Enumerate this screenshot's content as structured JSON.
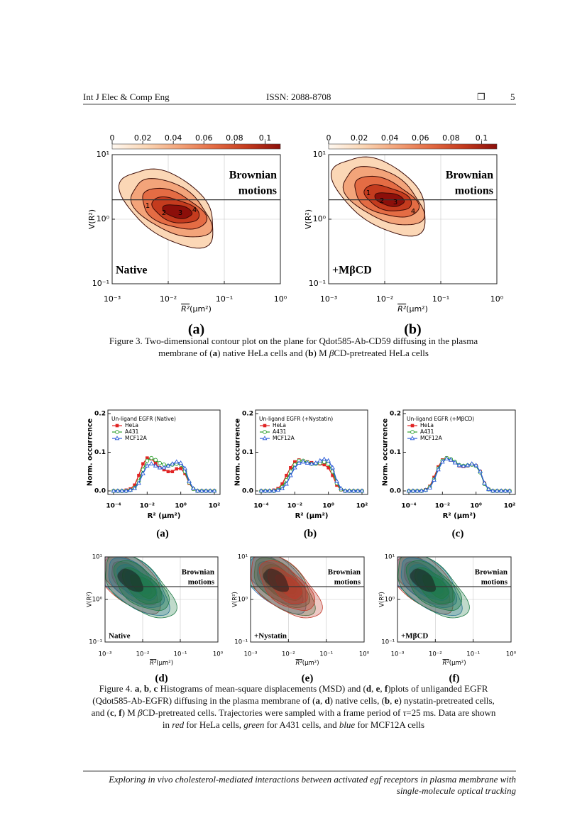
{
  "header": {
    "journal": "Int J Elec & Comp Eng",
    "issn": "ISSN: 2088-8708",
    "symbol": "❐",
    "page": "5"
  },
  "figure3": {
    "panels": [
      {
        "type": "contour",
        "label": "(a)",
        "condition": "Native",
        "annotation": [
          "Brownian",
          "motions"
        ],
        "xscale": "log",
        "yscale": "log",
        "xlim": [
          0.001,
          1
        ],
        "ylim": [
          0.1,
          10
        ],
        "xticks": [
          {
            "value": 0.001,
            "label": "10⁻³"
          },
          {
            "value": 0.01,
            "label": "10⁻²"
          },
          {
            "value": 0.1,
            "label": "10⁻¹"
          },
          {
            "value": 1,
            "label": "10⁰"
          }
        ],
        "yticks": [
          {
            "value": 0.1,
            "label": "10⁻¹"
          },
          {
            "value": 1,
            "label": "10⁰"
          },
          {
            "value": 10,
            "label": "10¹"
          }
        ],
        "xlabel": {
          "symbol": "R²",
          "unit": "(μm²)"
        },
        "ylabel": "V(R²)",
        "threshold": 2,
        "grid": true,
        "level_labels": [
          "1",
          "2",
          "3",
          "4"
        ],
        "colorbar": {
          "lim": [
            0,
            0.11
          ],
          "ticks": [
            0,
            0.02,
            0.04,
            0.06,
            0.08,
            0.1
          ],
          "colors": [
            "#fff8f0",
            "#fbd7b6",
            "#f3a47a",
            "#e46c44",
            "#c43b1e",
            "#8c0f0a"
          ]
        }
      },
      {
        "type": "contour",
        "label": "(b)",
        "condition": "+MβCD",
        "annotation": [
          "Brownian",
          "motions"
        ],
        "xscale": "log",
        "yscale": "log",
        "xlim": [
          0.001,
          1
        ],
        "ylim": [
          0.1,
          10
        ],
        "xticks": [
          {
            "value": 0.001,
            "label": "10⁻³"
          },
          {
            "value": 0.01,
            "label": "10⁻²"
          },
          {
            "value": 0.1,
            "label": "10⁻¹"
          },
          {
            "value": 1,
            "label": "10⁰"
          }
        ],
        "yticks": [
          {
            "value": 0.1,
            "label": "10⁻¹"
          },
          {
            "value": 1,
            "label": "10⁰"
          },
          {
            "value": 10,
            "label": "10¹"
          }
        ],
        "xlabel": {
          "symbol": "R²",
          "unit": "(μm²)"
        },
        "ylabel": "V(R²)",
        "threshold": 2,
        "grid": true,
        "level_labels": [
          "1",
          "2",
          "3",
          "4"
        ],
        "colorbar": {
          "lim": [
            0,
            0.11
          ],
          "ticks": [
            0,
            0.02,
            0.04,
            0.06,
            0.08,
            0.1
          ],
          "colors": [
            "#fff8f0",
            "#fbd7b6",
            "#f3a47a",
            "#e46c44",
            "#c43b1e",
            "#8c0f0a"
          ]
        }
      }
    ],
    "caption": [
      [
        {
          "t": "Figure 3. Two-dimensional contour plot on the plane for Qdot585-Ab-CD59 diffusing in the plasma"
        }
      ],
      [
        {
          "t": "membrane of ("
        },
        {
          "t": "a",
          "f": "b"
        },
        {
          "t": ") native HeLa cells and ("
        },
        {
          "t": "b",
          "f": "b"
        },
        {
          "t": ") M "
        },
        {
          "t": "β",
          "f": "i"
        },
        {
          "t": "CD-pretreated HeLa cells"
        }
      ]
    ]
  },
  "figure4": {
    "histograms": [
      {
        "type": "line",
        "label": "(a)",
        "legend_title": "Un-ligand EGFR (Native)",
        "xscale": "log",
        "x": [
          0.0001,
          0.000178,
          0.000316,
          0.000562,
          0.001,
          0.00178,
          0.00316,
          0.00562,
          0.01,
          0.0178,
          0.0316,
          0.0562,
          0.1,
          0.178,
          0.316,
          0.562,
          1,
          1.78,
          3.16,
          5.62,
          10,
          17.8,
          31.6,
          56.2,
          100
        ],
        "xlim": [
          0.0001,
          100
        ],
        "ylim": [
          0,
          0.2
        ],
        "xticks": [
          {
            "value": 0.0001,
            "label": "10⁻⁴"
          },
          {
            "value": 0.01,
            "label": "10⁻²"
          },
          {
            "value": 1,
            "label": "10⁰"
          },
          {
            "value": 100,
            "label": "10²"
          }
        ],
        "yticks": [
          {
            "value": 0,
            "label": "0.0"
          },
          0.1,
          0.2
        ],
        "xlabel": "R² (μm²)",
        "ylabel": "Norm. occurrence",
        "series": [
          {
            "name": "HeLa",
            "color": "#e02424",
            "marker": "square",
            "values": [
              0,
              0,
              0,
              0.002,
              0.005,
              0.015,
              0.04,
              0.07,
              0.085,
              0.083,
              0.072,
              0.06,
              0.055,
              0.05,
              0.05,
              0.057,
              0.058,
              0.045,
              0.02,
              0.005,
              0,
              0,
              0,
              0,
              0
            ]
          },
          {
            "name": "A431",
            "color": "#2fa02f",
            "marker": "circle",
            "values": [
              0,
              0,
              0,
              0,
              0.002,
              0.008,
              0.025,
              0.055,
              0.078,
              0.085,
              0.08,
              0.072,
              0.068,
              0.065,
              0.068,
              0.07,
              0.068,
              0.05,
              0.022,
              0.005,
              0,
              0,
              0,
              0,
              0
            ]
          },
          {
            "name": "MCF12A",
            "color": "#2a5bd7",
            "marker": "triangle",
            "values": [
              0,
              0,
              0,
              0,
              0.002,
              0.006,
              0.02,
              0.045,
              0.065,
              0.07,
              0.065,
              0.06,
              0.06,
              0.065,
              0.07,
              0.075,
              0.072,
              0.058,
              0.025,
              0.006,
              0,
              0,
              0,
              0,
              0
            ]
          }
        ]
      },
      {
        "type": "line",
        "label": "(b)",
        "legend_title": "Un-ligand EGFR (+Nystatin)",
        "xscale": "log",
        "x": [
          0.0001,
          0.000178,
          0.000316,
          0.000562,
          0.001,
          0.00178,
          0.00316,
          0.00562,
          0.01,
          0.0178,
          0.0316,
          0.0562,
          0.1,
          0.178,
          0.316,
          0.562,
          1,
          1.78,
          3.16,
          5.62,
          10,
          17.8,
          31.6,
          56.2,
          100
        ],
        "xlim": [
          0.0001,
          100
        ],
        "ylim": [
          0,
          0.2
        ],
        "xticks": [
          {
            "value": 0.0001,
            "label": "10⁻⁴"
          },
          {
            "value": 0.01,
            "label": "10⁻²"
          },
          {
            "value": 1,
            "label": "10⁰"
          },
          {
            "value": 100,
            "label": "10²"
          }
        ],
        "yticks": [
          {
            "value": 0,
            "label": "0.0"
          },
          0.1,
          0.2
        ],
        "xlabel": "R² (μm²)",
        "ylabel": "Norm. occurrence",
        "series": [
          {
            "name": "HeLa",
            "color": "#e02424",
            "marker": "square",
            "values": [
              0,
              0,
              0,
              0.002,
              0.006,
              0.018,
              0.04,
              0.06,
              0.075,
              0.08,
              0.078,
              0.075,
              0.073,
              0.07,
              0.07,
              0.068,
              0.06,
              0.04,
              0.015,
              0.003,
              0,
              0,
              0,
              0,
              0
            ]
          },
          {
            "name": "A431",
            "color": "#2fa02f",
            "marker": "circle",
            "values": [
              0,
              0,
              0,
              0,
              0.003,
              0.01,
              0.028,
              0.05,
              0.068,
              0.078,
              0.078,
              0.074,
              0.07,
              0.07,
              0.072,
              0.075,
              0.07,
              0.05,
              0.02,
              0.004,
              0,
              0,
              0,
              0,
              0
            ]
          },
          {
            "name": "MCF12A",
            "color": "#2a5bd7",
            "marker": "triangle",
            "values": [
              0,
              0,
              0,
              0,
              0.002,
              0.006,
              0.018,
              0.04,
              0.06,
              0.072,
              0.075,
              0.072,
              0.07,
              0.072,
              0.078,
              0.082,
              0.078,
              0.06,
              0.025,
              0.006,
              0,
              0,
              0,
              0,
              0
            ]
          }
        ]
      },
      {
        "type": "line",
        "label": "(c)",
        "legend_title": "Un-ligand EGFR (+MβCD)",
        "xscale": "log",
        "x": [
          0.0001,
          0.000178,
          0.000316,
          0.000562,
          0.001,
          0.00178,
          0.00316,
          0.00562,
          0.01,
          0.0178,
          0.0316,
          0.0562,
          0.1,
          0.178,
          0.316,
          0.562,
          1,
          1.78,
          3.16,
          5.62,
          10,
          17.8,
          31.6,
          56.2,
          100
        ],
        "xlim": [
          0.0001,
          100
        ],
        "ylim": [
          0,
          0.2
        ],
        "xticks": [
          {
            "value": 0.0001,
            "label": "10⁻⁴"
          },
          {
            "value": 0.01,
            "label": "10⁻²"
          },
          {
            "value": 1,
            "label": "10⁰"
          },
          {
            "value": 100,
            "label": "10²"
          }
        ],
        "yticks": [
          {
            "value": 0,
            "label": "0.0"
          },
          0.1,
          0.2
        ],
        "xlabel": "R² (μm²)",
        "ylabel": "Norm. occurrence",
        "series": [
          {
            "name": "HeLa",
            "color": "#e02424",
            "marker": "square",
            "values": [
              0,
              0,
              0,
              0,
              0.003,
              0.012,
              0.035,
              0.062,
              0.08,
              0.085,
              0.08,
              0.073,
              0.065,
              0.063,
              0.065,
              0.068,
              0.065,
              0.05,
              0.02,
              0.004,
              0,
              0,
              0,
              0,
              0
            ]
          },
          {
            "name": "A431",
            "color": "#2fa02f",
            "marker": "circle",
            "values": [
              0,
              0,
              0,
              0,
              0.002,
              0.01,
              0.03,
              0.058,
              0.078,
              0.085,
              0.082,
              0.075,
              0.067,
              0.065,
              0.066,
              0.068,
              0.064,
              0.048,
              0.018,
              0.004,
              0,
              0,
              0,
              0,
              0
            ]
          },
          {
            "name": "MCF12A",
            "color": "#2a5bd7",
            "marker": "triangle",
            "values": [
              0,
              0,
              0,
              0,
              0.002,
              0.008,
              0.028,
              0.055,
              0.075,
              0.083,
              0.08,
              0.073,
              0.066,
              0.064,
              0.066,
              0.07,
              0.066,
              0.05,
              0.02,
              0.004,
              0,
              0,
              0,
              0,
              0
            ]
          }
        ]
      }
    ],
    "contours": [
      {
        "type": "contour",
        "label": "(d)",
        "condition": "Native",
        "annotation": [
          "Brownian",
          "motions"
        ],
        "xscale": "log",
        "yscale": "log",
        "xlim": [
          0.001,
          1
        ],
        "ylim": [
          0.1,
          10
        ],
        "xticks": [
          {
            "value": 0.001,
            "label": "10⁻³"
          },
          {
            "value": 0.01,
            "label": "10⁻²"
          },
          {
            "value": 0.1,
            "label": "10⁻¹"
          },
          {
            "value": 1,
            "label": "10⁰"
          }
        ],
        "yticks": [
          {
            "value": 0.1,
            "label": "10⁻¹"
          },
          {
            "value": 1,
            "label": "10⁰"
          },
          {
            "value": 10,
            "label": "10¹"
          }
        ],
        "xlabel": {
          "symbol": "R²",
          "unit": "(μm²)"
        },
        "ylabel": "V(R²)",
        "threshold": 2,
        "grid": true,
        "fills": [
          "#c0392b",
          "#2c6fb0",
          "#1e7a45"
        ]
      },
      {
        "type": "contour",
        "label": "(e)",
        "condition": "+Nystatin",
        "annotation": [
          "Brownian",
          "motions"
        ],
        "xscale": "log",
        "yscale": "log",
        "xlim": [
          0.001,
          1
        ],
        "ylim": [
          0.1,
          10
        ],
        "xticks": [
          {
            "value": 0.001,
            "label": "10⁻³"
          },
          {
            "value": 0.01,
            "label": "10⁻²"
          },
          {
            "value": 0.1,
            "label": "10⁻¹"
          },
          {
            "value": 1,
            "label": "10⁰"
          }
        ],
        "yticks": [
          {
            "value": 0.1,
            "label": "10⁻¹"
          },
          {
            "value": 1,
            "label": "10⁰"
          },
          {
            "value": 10,
            "label": "10¹"
          }
        ],
        "xlabel": {
          "symbol": "R²",
          "unit": "(μm²)"
        },
        "ylabel": "V(R²)",
        "threshold": 2,
        "grid": true,
        "fills": [
          "#2c6fb0",
          "#1e7a45",
          "#c0392b"
        ]
      },
      {
        "type": "contour",
        "label": "(f)",
        "condition": "+MβCD",
        "annotation": [
          "Brownian",
          "motions"
        ],
        "xscale": "log",
        "yscale": "log",
        "xlim": [
          0.001,
          1
        ],
        "ylim": [
          0.1,
          10
        ],
        "xticks": [
          {
            "value": 0.001,
            "label": "10⁻³"
          },
          {
            "value": 0.01,
            "label": "10⁻²"
          },
          {
            "value": 0.1,
            "label": "10⁻¹"
          },
          {
            "value": 1,
            "label": "10⁰"
          }
        ],
        "yticks": [
          {
            "value": 0.1,
            "label": "10⁻¹"
          },
          {
            "value": 1,
            "label": "10⁰"
          },
          {
            "value": 10,
            "label": "10¹"
          }
        ],
        "xlabel": {
          "symbol": "R²",
          "unit": "(μm²)"
        },
        "ylabel": "V(R²)",
        "threshold": 2,
        "grid": true,
        "fills": [
          "#c0392b",
          "#2c6fb0",
          "#1e7a45"
        ]
      }
    ],
    "caption": [
      [
        {
          "t": "Figure 4. "
        },
        {
          "t": "a",
          "f": "b"
        },
        {
          "t": ", "
        },
        {
          "t": "b",
          "f": "b"
        },
        {
          "t": ", "
        },
        {
          "t": "c",
          "f": "b"
        },
        {
          "t": " Histograms of mean-square displacements (MSD) and ("
        },
        {
          "t": "d",
          "f": "b"
        },
        {
          "t": ", "
        },
        {
          "t": "e",
          "f": "b"
        },
        {
          "t": ", "
        },
        {
          "t": "f",
          "f": "b"
        },
        {
          "t": ")plots of unliganded EGFR"
        }
      ],
      [
        {
          "t": "(Qdot585-Ab-EGFR) diffusing in the plasma membrane of ("
        },
        {
          "t": "a",
          "f": "b"
        },
        {
          "t": ", "
        },
        {
          "t": "d",
          "f": "b"
        },
        {
          "t": ") native cells, ("
        },
        {
          "t": "b",
          "f": "b"
        },
        {
          "t": ", "
        },
        {
          "t": "e",
          "f": "b"
        },
        {
          "t": ") nystatin-pretreated cells,"
        }
      ],
      [
        {
          "t": "and ("
        },
        {
          "t": "c",
          "f": "b"
        },
        {
          "t": ", "
        },
        {
          "t": "f",
          "f": "b"
        },
        {
          "t": ") M "
        },
        {
          "t": "β",
          "f": "i"
        },
        {
          "t": "CD-pretreated cells. Trajectories were sampled with a frame period of "
        },
        {
          "t": "τ",
          "f": "i"
        },
        {
          "t": "=25 ms. Data are shown"
        }
      ],
      [
        {
          "t": "in "
        },
        {
          "t": "red",
          "f": "i"
        },
        {
          "t": " for HeLa cells, "
        },
        {
          "t": "green",
          "f": "i"
        },
        {
          "t": " for A431 cells, and "
        },
        {
          "t": "blue",
          "f": "i"
        },
        {
          "t": " for MCF12A cells"
        }
      ]
    ]
  },
  "footer": [
    "Exploring in vivo cholesterol-mediated interactions between activated egf receptors in plasma membrane with",
    "single-molecule optical tracking"
  ]
}
